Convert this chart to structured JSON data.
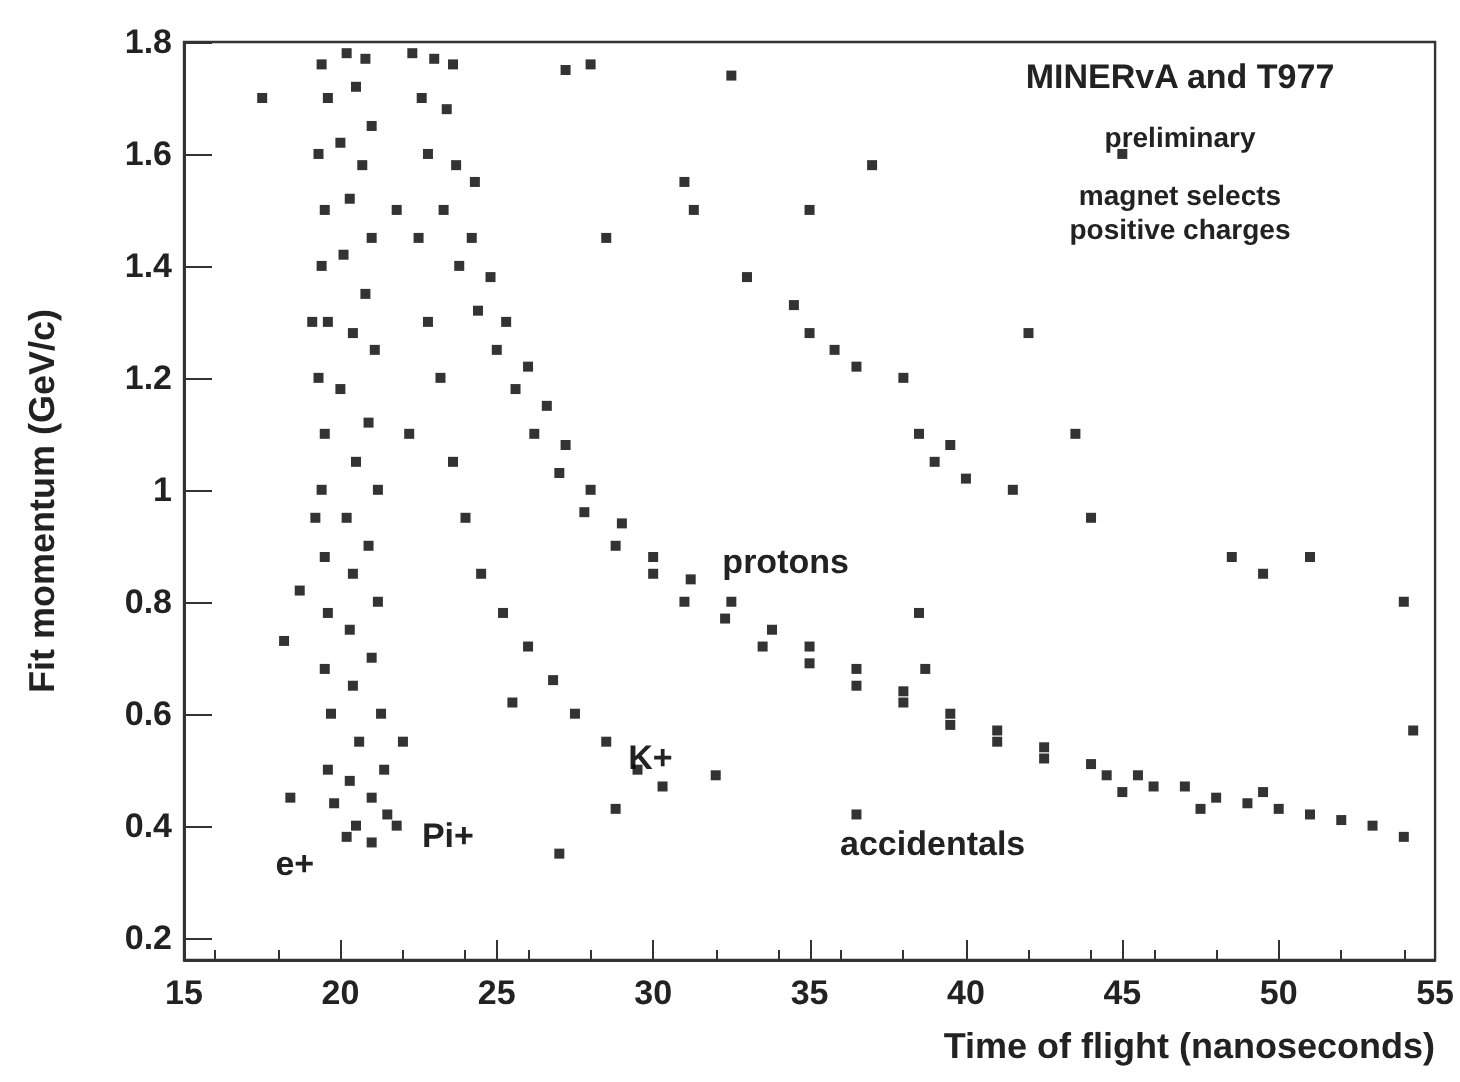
{
  "chart_data": {
    "type": "scatter",
    "xlabel": "Time of flight (nanoseconds)",
    "ylabel": "Fit momentum (GeV/c)",
    "xlim": [
      15,
      55
    ],
    "xticks": [
      15,
      20,
      25,
      30,
      35,
      40,
      45,
      50,
      55
    ],
    "ylim": [
      0.16,
      1.8
    ],
    "yticks": [
      0.2,
      0.4,
      0.6,
      0.8,
      1,
      1.2,
      1.4,
      1.6,
      1.8
    ],
    "grid": false,
    "marker": "square",
    "annotations": [
      "MINERvA and T977",
      "preliminary",
      "magnet selects\npositive charges",
      "e+",
      "Pi+",
      {
        "text": "K+",
        "x": 29.2,
        "y": 0.52
      },
      "protons",
      "accidentals"
    ],
    "series": [
      {
        "color": "#000000",
        "x": [
          19.4,
          20.2,
          20.8,
          19.6,
          20.5,
          21.0,
          19.3,
          20.0,
          20.7,
          19.5,
          20.3,
          21.0,
          19.4,
          20.1,
          20.8,
          19.6,
          20.4,
          21.1,
          19.3,
          20.0,
          20.9,
          19.5,
          20.5,
          21.2,
          19.4,
          20.2,
          20.9,
          19.5,
          20.4,
          21.2,
          19.6,
          20.3,
          21.0,
          19.5,
          20.4,
          21.3,
          19.7,
          20.6,
          21.4,
          19.6,
          20.3,
          21.0,
          19.8,
          20.5,
          21.5,
          20.2,
          21.0,
          21.8,
          19.2,
          19.1,
          18.4,
          18.7,
          18.2,
          22.0,
          21.8,
          22.2,
          22.3,
          23.0,
          23.6,
          22.6,
          23.4,
          22.8,
          23.7,
          24.3,
          23.3,
          24.2,
          23.8,
          24.8,
          24.4,
          25.3,
          25.0,
          26.0,
          25.6,
          26.6,
          26.2,
          27.2,
          27.0,
          28.0,
          27.8,
          29.0,
          28.8,
          30.0,
          30.0,
          31.2,
          31.0,
          32.5,
          32.3,
          33.8,
          33.5,
          35.0,
          35.0,
          36.5,
          36.5,
          38.0,
          38.0,
          39.5,
          39.5,
          41.0,
          41.0,
          42.5,
          42.5,
          44.0,
          44.5,
          45.5,
          46.0,
          47.0,
          48.0,
          49.0,
          50.0,
          51.0,
          52.0,
          53.0,
          54.0,
          49.5,
          47.5,
          45.0,
          22.5,
          22.8,
          23.2,
          23.6,
          24.0,
          24.5,
          25.2,
          26.0,
          26.8,
          27.5,
          28.5,
          29.5,
          30.3,
          25.5,
          28.8,
          17.5,
          27.2,
          28.0,
          32.5,
          31.0,
          31.3,
          33.0,
          34.5,
          35.0,
          35.8,
          36.5,
          38.0,
          38.5,
          39.0,
          39.5,
          40.0,
          41.5,
          44.0,
          43.5,
          42.0,
          48.5,
          49.5,
          51.0,
          54.0,
          38.5,
          38.7,
          54.3,
          36.5,
          27.0,
          35.0,
          45.0,
          28.5,
          37.0,
          32.0
        ],
        "values": [
          1.76,
          1.78,
          1.77,
          1.7,
          1.72,
          1.65,
          1.6,
          1.62,
          1.58,
          1.5,
          1.52,
          1.45,
          1.4,
          1.42,
          1.35,
          1.3,
          1.28,
          1.25,
          1.2,
          1.18,
          1.12,
          1.1,
          1.05,
          1.0,
          1.0,
          0.95,
          0.9,
          0.88,
          0.85,
          0.8,
          0.78,
          0.75,
          0.7,
          0.68,
          0.65,
          0.6,
          0.6,
          0.55,
          0.5,
          0.5,
          0.48,
          0.45,
          0.44,
          0.4,
          0.42,
          0.38,
          0.37,
          0.4,
          0.95,
          1.3,
          0.45,
          0.82,
          0.73,
          0.55,
          1.5,
          1.1,
          1.78,
          1.77,
          1.76,
          1.7,
          1.68,
          1.6,
          1.58,
          1.55,
          1.5,
          1.45,
          1.4,
          1.38,
          1.32,
          1.3,
          1.25,
          1.22,
          1.18,
          1.15,
          1.1,
          1.08,
          1.03,
          1.0,
          0.96,
          0.94,
          0.9,
          0.88,
          0.85,
          0.84,
          0.8,
          0.8,
          0.77,
          0.75,
          0.72,
          0.72,
          0.69,
          0.68,
          0.65,
          0.64,
          0.62,
          0.6,
          0.58,
          0.57,
          0.55,
          0.54,
          0.52,
          0.51,
          0.49,
          0.49,
          0.47,
          0.47,
          0.45,
          0.44,
          0.43,
          0.42,
          0.41,
          0.4,
          0.38,
          0.46,
          0.43,
          0.46,
          1.45,
          1.3,
          1.2,
          1.05,
          0.95,
          0.85,
          0.78,
          0.72,
          0.66,
          0.6,
          0.55,
          0.5,
          0.47,
          0.62,
          0.43,
          1.7,
          1.75,
          1.76,
          1.74,
          1.55,
          1.5,
          1.38,
          1.33,
          1.28,
          1.25,
          1.22,
          1.2,
          1.1,
          1.05,
          1.08,
          1.02,
          1.0,
          0.95,
          1.1,
          1.28,
          0.88,
          0.85,
          0.88,
          0.8,
          0.78,
          0.68,
          0.57,
          0.42,
          0.35,
          1.5,
          1.6,
          1.45,
          1.58,
          0.49
        ]
      }
    ]
  }
}
